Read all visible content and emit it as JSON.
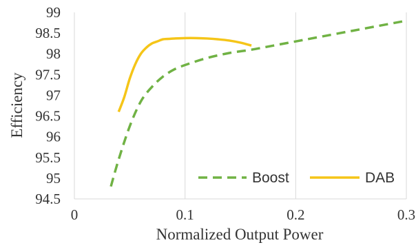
{
  "chart_data": {
    "type": "line",
    "title": "",
    "xlabel": "Normalized Output Power",
    "ylabel": "Efficiency",
    "xlim": [
      0,
      0.3
    ],
    "ylim": [
      94.5,
      99
    ],
    "x_ticks": [
      "0",
      "0.1",
      "0.2",
      "0.3"
    ],
    "y_ticks": [
      "94.5",
      "95",
      "95.5",
      "96",
      "96.5",
      "97",
      "97.5",
      "98",
      "98.5",
      "99"
    ],
    "grid": "vertical",
    "legend_position": "bottom-right",
    "series": [
      {
        "name": "Boost",
        "color": "#70b244",
        "style": "dashed",
        "x": [
          0.033,
          0.04,
          0.05,
          0.06,
          0.07,
          0.08,
          0.09,
          0.1,
          0.12,
          0.14,
          0.16,
          0.18,
          0.2,
          0.22,
          0.25,
          0.28,
          0.3
        ],
        "y": [
          94.8,
          95.45,
          96.25,
          96.85,
          97.2,
          97.45,
          97.62,
          97.73,
          97.9,
          98.02,
          98.1,
          98.2,
          98.3,
          98.4,
          98.55,
          98.7,
          98.8
        ]
      },
      {
        "name": "DAB",
        "color": "#f5c518",
        "style": "solid",
        "x": [
          0.04,
          0.045,
          0.05,
          0.055,
          0.06,
          0.065,
          0.07,
          0.075,
          0.08,
          0.085,
          0.09,
          0.1,
          0.11,
          0.12,
          0.13,
          0.14,
          0.15,
          0.16
        ],
        "y": [
          96.6,
          96.95,
          97.4,
          97.75,
          98.0,
          98.15,
          98.25,
          98.3,
          98.35,
          98.36,
          98.37,
          98.38,
          98.38,
          98.37,
          98.35,
          98.32,
          98.27,
          98.2
        ]
      }
    ]
  }
}
